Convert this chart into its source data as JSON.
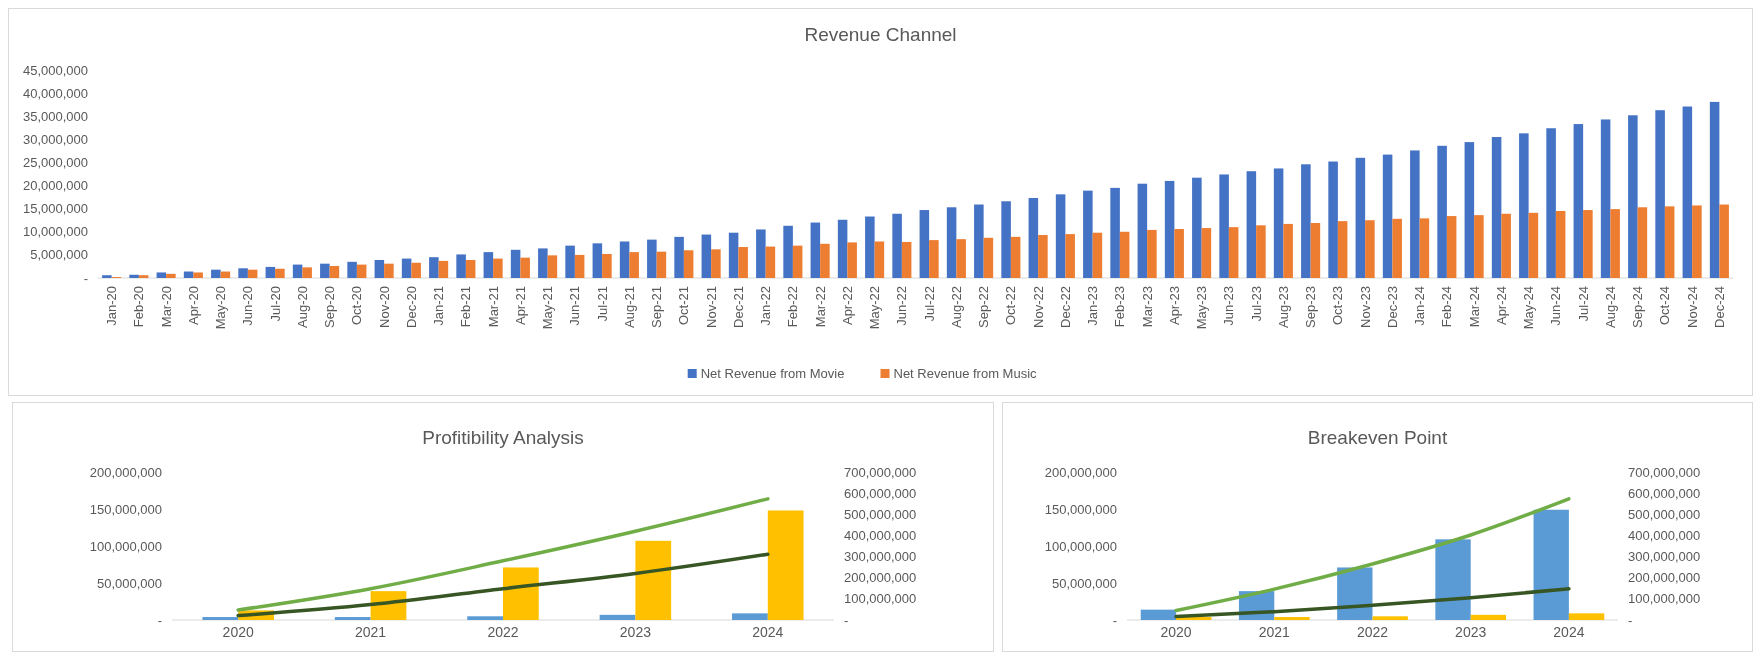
{
  "chart_data": [
    {
      "type": "bar",
      "title": "Revenue Channel",
      "legend": "bottom",
      "categories": [
        "Jan-20",
        "Feb-20",
        "Mar-20",
        "Apr-20",
        "May-20",
        "Jun-20",
        "Jul-20",
        "Aug-20",
        "Sep-20",
        "Oct-20",
        "Nov-20",
        "Dec-20",
        "Jan-21",
        "Feb-21",
        "Mar-21",
        "Apr-21",
        "May-21",
        "Jun-21",
        "Jul-21",
        "Aug-21",
        "Sep-21",
        "Oct-21",
        "Nov-21",
        "Dec-21",
        "Jan-22",
        "Feb-22",
        "Mar-22",
        "Apr-22",
        "May-22",
        "Jun-22",
        "Jul-22",
        "Aug-22",
        "Sep-22",
        "Oct-22",
        "Nov-22",
        "Dec-22",
        "Jan-23",
        "Feb-23",
        "Mar-23",
        "Apr-23",
        "May-23",
        "Jun-23",
        "Jul-23",
        "Aug-23",
        "Sep-23",
        "Oct-23",
        "Nov-23",
        "Dec-23",
        "Jan-24",
        "Feb-24",
        "Mar-24",
        "Apr-24",
        "May-24",
        "Jun-24",
        "Jul-24",
        "Aug-24",
        "Sep-24",
        "Oct-24",
        "Nov-24",
        "Dec-24"
      ],
      "series": [
        {
          "name": "Net Revenue from Movie",
          "color": "#4472c4",
          "values": [
            600000,
            700000,
            1200000,
            1400000,
            1800000,
            2100000,
            2400000,
            2900000,
            3100000,
            3500000,
            3900000,
            4200000,
            4500000,
            5100000,
            5600000,
            6100000,
            6400000,
            7000000,
            7500000,
            7900000,
            8300000,
            8900000,
            9400000,
            9800000,
            10500000,
            11300000,
            12000000,
            12600000,
            13300000,
            13900000,
            14700000,
            15300000,
            15900000,
            16600000,
            17300000,
            18100000,
            18900000,
            19500000,
            20400000,
            21000000,
            21700000,
            22400000,
            23100000,
            23700000,
            24600000,
            25200000,
            26000000,
            26700000,
            27600000,
            28600000,
            29400000,
            30500000,
            31300000,
            32400000,
            33300000,
            34300000,
            35200000,
            36300000,
            37100000,
            38100000
          ]
        },
        {
          "name": "Net Revenue from Music",
          "color": "#ed7d31",
          "values": [
            200000,
            600000,
            900000,
            1200000,
            1400000,
            1800000,
            2000000,
            2300000,
            2600000,
            2900000,
            3100000,
            3300000,
            3700000,
            3900000,
            4200000,
            4400000,
            4900000,
            5000000,
            5200000,
            5600000,
            5700000,
            6000000,
            6200000,
            6700000,
            6800000,
            7000000,
            7400000,
            7700000,
            7900000,
            7800000,
            8200000,
            8400000,
            8700000,
            8900000,
            9300000,
            9500000,
            9800000,
            10000000,
            10400000,
            10600000,
            10800000,
            11000000,
            11400000,
            11700000,
            11900000,
            12300000,
            12500000,
            12800000,
            12900000,
            13400000,
            13600000,
            13900000,
            14100000,
            14500000,
            14700000,
            14900000,
            15300000,
            15500000,
            15700000,
            15900000
          ]
        }
      ],
      "ylim": [
        0,
        45000000
      ],
      "yticks": [
        {
          "value": 0,
          "label": "-"
        },
        {
          "value": 5000000,
          "label": "5,000,000"
        },
        {
          "value": 10000000,
          "label": "10,000,000"
        },
        {
          "value": 15000000,
          "label": "15,000,000"
        },
        {
          "value": 20000000,
          "label": "20,000,000"
        },
        {
          "value": 25000000,
          "label": "25,000,000"
        },
        {
          "value": 30000000,
          "label": "30,000,000"
        },
        {
          "value": 35000000,
          "label": "35,000,000"
        },
        {
          "value": 40000000,
          "label": "40,000,000"
        },
        {
          "value": 45000000,
          "label": "45,000,000"
        }
      ]
    },
    {
      "type": "bar",
      "title": "Profitibility Analysis",
      "categories": [
        "2020",
        "2021",
        "2022",
        "2023",
        "2024"
      ],
      "series": [
        {
          "color": "#5b9bd5",
          "values": [
            4000000,
            4000000,
            5000000,
            7000000,
            9000000
          ]
        },
        {
          "color": "#ffc000",
          "values": [
            13000000,
            39000000,
            71000000,
            107000000,
            148000000
          ]
        },
        {
          "type": "line",
          "axis": "y2",
          "color": "#70ad47",
          "values": [
            47000000,
            148000000,
            280000000,
            420000000,
            573000000
          ]
        },
        {
          "type": "line",
          "axis": "y2",
          "color": "#375623",
          "values": [
            21000000,
            73000000,
            148000000,
            220000000,
            311000000
          ]
        }
      ],
      "ylim": [
        0,
        200000000
      ],
      "yticks": [
        {
          "value": 0,
          "label": "-"
        },
        {
          "value": 50000000,
          "label": "50,000,000"
        },
        {
          "value": 100000000,
          "label": "100,000,000"
        },
        {
          "value": 150000000,
          "label": "150,000,000"
        },
        {
          "value": 200000000,
          "label": "200,000,000"
        }
      ],
      "y2lim": [
        0,
        700000000
      ],
      "y2ticks": [
        {
          "value": 0,
          "label": "-"
        },
        {
          "value": 100000000,
          "label": "100,000,000"
        },
        {
          "value": 200000000,
          "label": "200,000,000"
        },
        {
          "value": 300000000,
          "label": "300,000,000"
        },
        {
          "value": 400000000,
          "label": "400,000,000"
        },
        {
          "value": 500000000,
          "label": "500,000,000"
        },
        {
          "value": 600000000,
          "label": "600,000,000"
        },
        {
          "value": 700000000,
          "label": "700,000,000"
        }
      ]
    },
    {
      "type": "bar",
      "title": "Breakeven Point",
      "categories": [
        "2020",
        "2021",
        "2022",
        "2023",
        "2024"
      ],
      "series": [
        {
          "color": "#5b9bd5",
          "values": [
            14000000,
            39000000,
            71000000,
            109000000,
            149000000
          ]
        },
        {
          "color": "#ffc000",
          "values": [
            4000000,
            4000000,
            5000000,
            7000000,
            9000000
          ]
        },
        {
          "type": "line",
          "axis": "y2",
          "color": "#70ad47",
          "values": [
            45000000,
            146000000,
            265000000,
            402000000,
            573000000
          ]
        },
        {
          "type": "line",
          "axis": "y2",
          "color": "#375623",
          "values": [
            16000000,
            39000000,
            70000000,
            105000000,
            148000000
          ]
        }
      ],
      "ylim": [
        0,
        200000000
      ],
      "yticks": [
        {
          "value": 0,
          "label": "-"
        },
        {
          "value": 50000000,
          "label": "50,000,000"
        },
        {
          "value": 100000000,
          "label": "100,000,000"
        },
        {
          "value": 150000000,
          "label": "150,000,000"
        },
        {
          "value": 200000000,
          "label": "200,000,000"
        }
      ],
      "y2lim": [
        0,
        700000000
      ],
      "y2ticks": [
        {
          "value": 0,
          "label": "-"
        },
        {
          "value": 100000000,
          "label": "100,000,000"
        },
        {
          "value": 200000000,
          "label": "200,000,000"
        },
        {
          "value": 300000000,
          "label": "300,000,000"
        },
        {
          "value": 400000000,
          "label": "400,000,000"
        },
        {
          "value": 500000000,
          "label": "500,000,000"
        },
        {
          "value": 600000000,
          "label": "600,000,000"
        },
        {
          "value": 700000000,
          "label": "700,000,000"
        }
      ]
    }
  ]
}
